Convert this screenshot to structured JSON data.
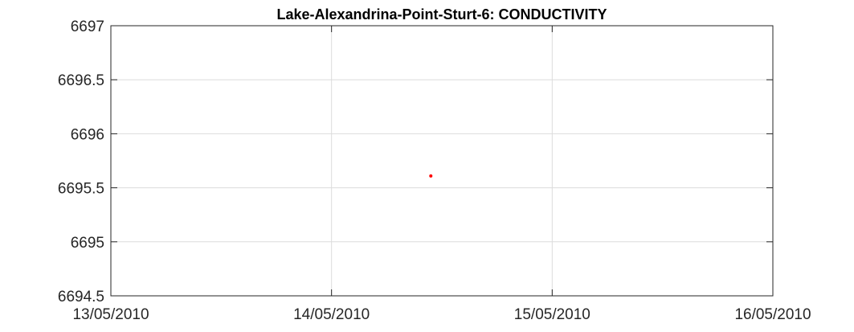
{
  "chart_data": {
    "type": "scatter",
    "title": "Lake-Alexandrina-Point-Sturt-6: CONDUCTIVITY",
    "xlabel": "",
    "ylabel": "",
    "x_ticks": [
      "13/05/2010",
      "14/05/2010",
      "15/05/2010",
      "16/05/2010"
    ],
    "xlim": [
      0,
      3
    ],
    "y_ticks": [
      "6697",
      "6696.5",
      "6696",
      "6695.5",
      "6695",
      "6694.5"
    ],
    "ylim": [
      6694.5,
      6697
    ],
    "grid": true,
    "legend": "none",
    "series": [
      {
        "name": "CONDUCTIVITY",
        "color": "#ff0000",
        "points": [
          {
            "x": 1.45,
            "x_label": "14/05/2010",
            "y": 6695.61
          }
        ]
      }
    ]
  }
}
